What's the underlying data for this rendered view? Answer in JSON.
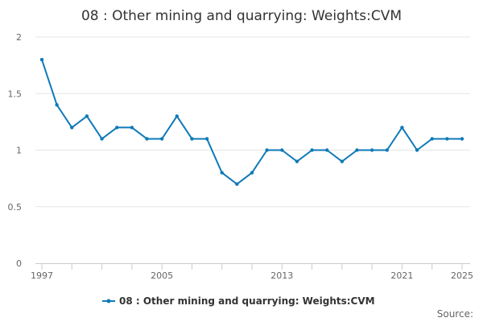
{
  "chart_data": {
    "type": "line",
    "title": "08 : Other mining and quarrying: Weights:CVM",
    "xlabel": "",
    "ylabel": "",
    "x": [
      1997,
      1998,
      1999,
      2000,
      2001,
      2002,
      2003,
      2004,
      2005,
      2006,
      2007,
      2008,
      2009,
      2010,
      2011,
      2012,
      2013,
      2014,
      2015,
      2016,
      2017,
      2018,
      2019,
      2020,
      2021,
      2022,
      2023,
      2024,
      2025
    ],
    "x_tick_labels": [
      "1997",
      "2005",
      "2013",
      "2021",
      "2025"
    ],
    "x_tick_values": [
      1997,
      2005,
      2013,
      2021,
      2025
    ],
    "y_tick_labels": [
      "0",
      "0.5",
      "1",
      "1.5",
      "2"
    ],
    "y_tick_values": [
      0,
      0.5,
      1,
      1.5,
      2
    ],
    "xlim": [
      1997,
      2025
    ],
    "ylim": [
      0,
      2
    ],
    "grid": true,
    "legend_position": "bottom",
    "series": [
      {
        "name": "08 : Other mining and quarrying: Weights:CVM",
        "color": "#0f7ab8",
        "values": [
          1.8,
          1.4,
          1.2,
          1.3,
          1.1,
          1.2,
          1.2,
          1.1,
          1.1,
          1.3,
          1.1,
          1.1,
          0.8,
          0.7,
          0.8,
          1.0,
          1.0,
          0.9,
          1.0,
          1.0,
          0.9,
          1.0,
          1.0,
          1.0,
          1.2,
          1.0,
          1.1,
          1.1,
          1.1
        ]
      }
    ],
    "source_label": "Source:"
  }
}
